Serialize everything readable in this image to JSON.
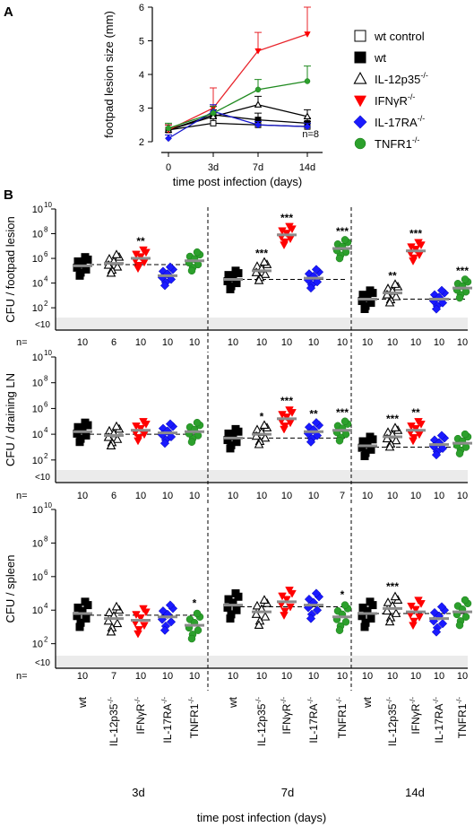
{
  "panel_labels": [
    "A",
    "B"
  ],
  "colors": {
    "wt_control": "#000000",
    "wt": "#000000",
    "il12p35": "#000000",
    "ifngr": "#ff0000",
    "il17ra": "#1a1aff",
    "tnfr1": "#2ca02c",
    "ifngr_line": "#e8242b",
    "tnfr1_line": "#1f8a1f",
    "il17ra_line": "#1414cc",
    "band": "#ebebeb",
    "median": "#8c8c8c"
  },
  "chart_data": [
    {
      "id": "A",
      "type": "line",
      "ylabel": "footpad lesion size (mm)",
      "xlabel": "time post infection (days)",
      "x_ticks": [
        "0",
        "3d",
        "7d",
        "14d"
      ],
      "ylim": [
        2,
        6
      ],
      "y_ticks": [
        "2",
        "3",
        "4",
        "5",
        "6"
      ],
      "annotation": "n=8",
      "legend_position": "right",
      "series": [
        {
          "name": "wt control",
          "key": "wt_control",
          "marker": "square-open",
          "values": [
            2.35,
            2.55,
            2.5,
            2.45
          ],
          "err": [
            0.15,
            0.15,
            0.1,
            0.15
          ]
        },
        {
          "name": "wt",
          "key": "wt",
          "marker": "square-filled",
          "values": [
            2.35,
            2.8,
            2.65,
            2.55
          ],
          "err": [
            0.15,
            0.25,
            0.2,
            0.15
          ]
        },
        {
          "name": "IL-12p35",
          "sup": "-/-",
          "key": "il12p35",
          "marker": "triangle-open",
          "values": [
            2.35,
            2.75,
            3.1,
            2.75
          ],
          "err": [
            0.15,
            0.2,
            0.25,
            0.2
          ]
        },
        {
          "name": "IFNγR",
          "sup": "-/-",
          "key": "ifngr",
          "marker": "triangle-down",
          "values": [
            2.35,
            3.0,
            4.7,
            5.2
          ],
          "err": [
            0.15,
            0.6,
            0.55,
            0.8
          ]
        },
        {
          "name": "IL-17RA",
          "sup": "-/-",
          "key": "il17ra",
          "marker": "diamond",
          "values": [
            2.1,
            2.9,
            2.5,
            2.45
          ],
          "err": [
            0.1,
            0.2,
            0.1,
            0.1
          ]
        },
        {
          "name": "TNFR1",
          "sup": "-/-",
          "key": "tnfr1",
          "marker": "circle",
          "values": [
            2.4,
            2.85,
            3.55,
            3.8
          ],
          "err": [
            0.15,
            0.2,
            0.3,
            0.45
          ]
        }
      ]
    },
    {
      "id": "B",
      "type": "scatter",
      "x_groups": [
        "3d",
        "7d",
        "14d"
      ],
      "x_title": "time post infection (days)",
      "strains": [
        {
          "name": "wt",
          "sup": "",
          "key": "wt",
          "marker": "square-filled"
        },
        {
          "name": "IL-12p35",
          "sup": "-/-",
          "key": "il12p35",
          "marker": "triangle-open"
        },
        {
          "name": "IFNγR",
          "sup": "-/-",
          "key": "ifngr",
          "marker": "triangle-down"
        },
        {
          "name": "IL-17RA",
          "sup": "-/-",
          "key": "il17ra",
          "marker": "diamond"
        },
        {
          "name": "TNFR1",
          "sup": "-/-",
          "key": "tnfr1",
          "marker": "circle"
        }
      ],
      "y_ticks": [
        "10",
        "10",
        "10",
        "10",
        "10"
      ],
      "y_tick_exp": [
        "2",
        "4",
        "6",
        "8",
        "10"
      ],
      "y_below_label": "<10",
      "n_label": "n=",
      "subplots": [
        {
          "ylabel": "CFU / footpad lesion",
          "n": [
            [
              "10",
              "6",
              "10",
              "10",
              "10"
            ],
            [
              "10",
              "10",
              "10",
              "10",
              "10"
            ],
            [
              "10",
              "10",
              "10",
              "10",
              "10"
            ]
          ],
          "sig": [
            [
              "",
              "**",
              "",
              "",
              ""
            ],
            [
              "***",
              "***",
              "",
              "***",
              ""
            ],
            [
              "**",
              "***",
              "",
              "***",
              ""
            ]
          ],
          "sig_x": [
            [
              1,
              2,
              3,
              4,
              5
            ],
            [
              2,
              3,
              3.5,
              5,
              6
            ],
            [
              2,
              3,
              3.5,
              5,
              6
            ]
          ],
          "medians": [
            [
              5.4,
              5.6,
              6.0,
              4.6,
              5.8
            ],
            [
              4.3,
              5.0,
              7.9,
              4.4,
              6.8
            ],
            [
              2.7,
              3.2,
              6.6,
              2.7,
              3.6
            ]
          ],
          "ref_line": [
            5.5,
            4.3,
            2.7
          ],
          "sig_labels": [
            [
              {
                "strain": 2,
                "text": "**"
              }
            ],
            [
              {
                "strain": 1,
                "text": "***"
              },
              {
                "strain": 2,
                "text": "***"
              },
              {
                "strain": 4,
                "text": "***"
              }
            ],
            [
              {
                "strain": 1,
                "text": "**"
              },
              {
                "strain": 2,
                "text": "***"
              },
              {
                "strain": 4,
                "text": "***"
              }
            ]
          ]
        },
        {
          "ylabel": "CFU / draining LN",
          "n": [
            [
              "10",
              "6",
              "10",
              "10",
              "10"
            ],
            [
              "10",
              "10",
              "10",
              "10",
              "7"
            ],
            [
              "10",
              "10",
              "10",
              "10",
              "10"
            ]
          ],
          "medians": [
            [
              4.2,
              3.9,
              4.3,
              4.1,
              4.2
            ],
            [
              3.7,
              4.0,
              5.2,
              4.2,
              4.3
            ],
            [
              3.1,
              3.8,
              4.3,
              3.2,
              3.3
            ]
          ],
          "ref_line": [
            4.0,
            3.7,
            3.0
          ],
          "sig_labels": [
            [],
            [
              {
                "strain": 1,
                "text": "*"
              },
              {
                "strain": 2,
                "text": "***"
              },
              {
                "strain": 3,
                "text": "**"
              },
              {
                "strain": 4,
                "text": "***"
              }
            ],
            [
              {
                "strain": 1,
                "text": "***"
              },
              {
                "strain": 2,
                "text": "**"
              }
            ]
          ]
        },
        {
          "ylabel": "CFU / spleen",
          "n": [
            [
              "10",
              "7",
              "10",
              "10",
              "10"
            ],
            [
              "10",
              "10",
              "10",
              "10",
              "10"
            ],
            [
              "10",
              "10",
              "10",
              "10",
              "10"
            ]
          ],
          "medians": [
            [
              3.8,
              3.5,
              3.4,
              3.6,
              3.1
            ],
            [
              4.3,
              3.9,
              4.5,
              4.3,
              3.6
            ],
            [
              3.8,
              4.1,
              3.9,
              3.5,
              3.9
            ]
          ],
          "ref_line": [
            3.7,
            4.2,
            3.8
          ],
          "sig_labels": [
            [
              {
                "strain": 4,
                "text": "*"
              }
            ],
            [
              {
                "strain": 4,
                "text": "*"
              }
            ],
            [
              {
                "strain": 1,
                "text": "***"
              }
            ]
          ]
        }
      ]
    }
  ]
}
